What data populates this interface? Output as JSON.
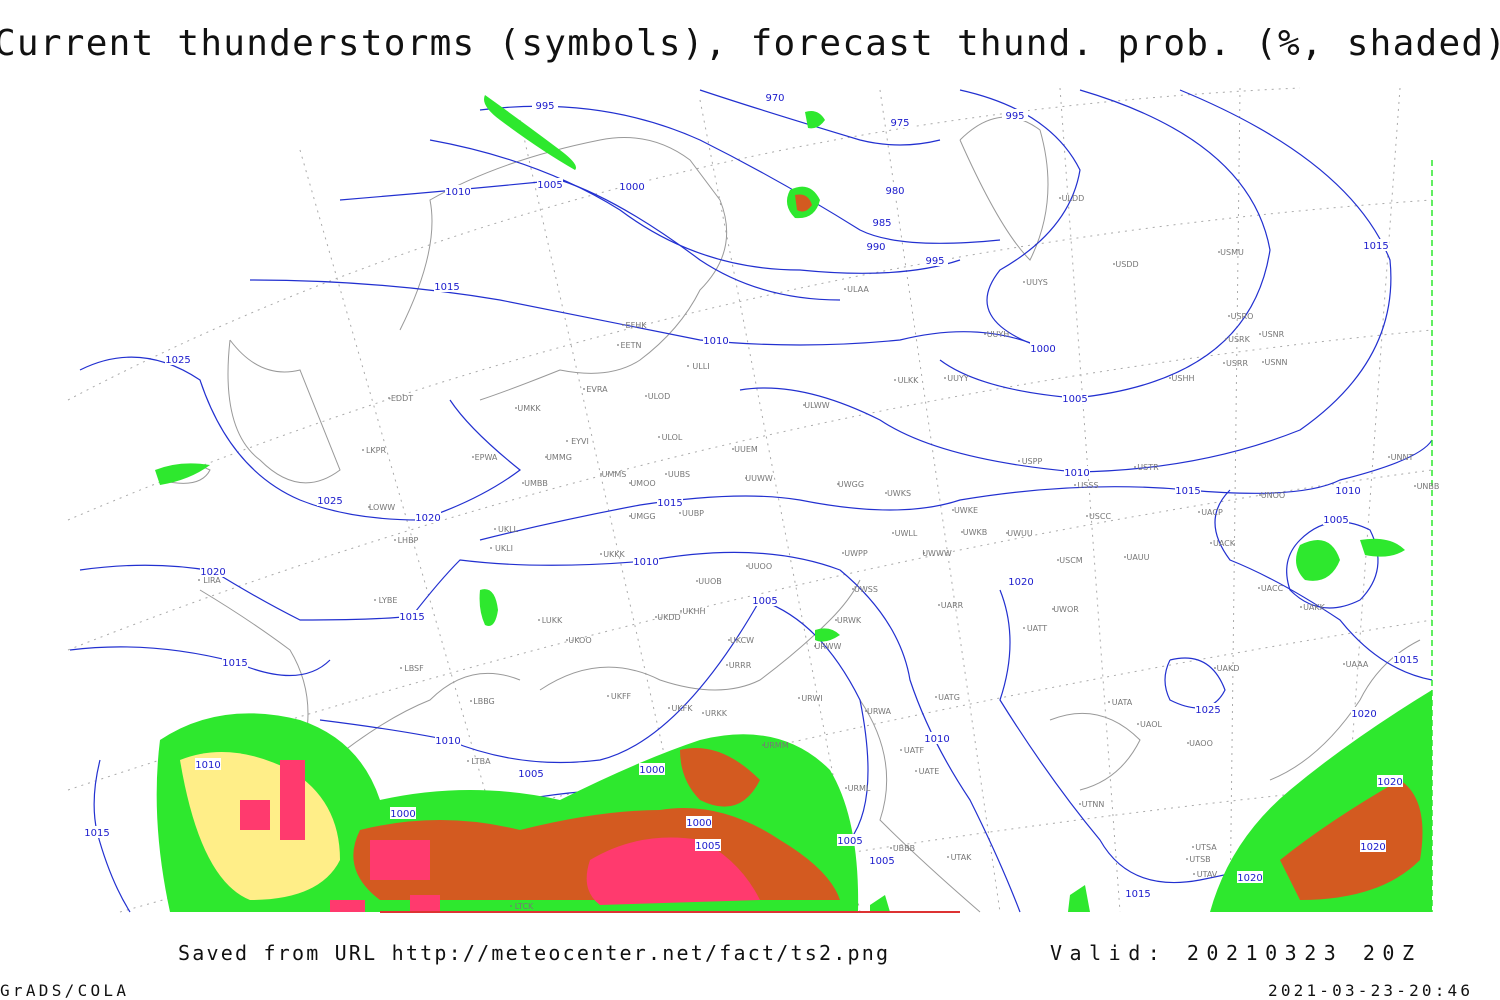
{
  "title": "Current thunderstorms (symbols), forecast thund. prob. (%, shaded)",
  "footer": {
    "saved": "Saved from URL http://meteocenter.net/fact/ts2.png",
    "valid": "Valid: 20210323 20Z",
    "software": "GrADS/COLA",
    "timestamp": "2021-03-23-20:46"
  },
  "isobar_labels": [
    995,
    970,
    975,
    995,
    1010,
    1005,
    1000,
    980,
    985,
    990,
    995,
    1015,
    1015,
    1025,
    1010,
    1000,
    1005,
    1025,
    1020,
    1015,
    1010,
    1015,
    1010,
    1005,
    1010,
    1020,
    1015,
    1005,
    1020,
    1015,
    1015,
    1025,
    1020,
    1010,
    1010,
    1010,
    1005,
    1000,
    1000,
    1000,
    1005,
    1005,
    1005,
    1020,
    1020,
    1020,
    1015,
    1015
  ],
  "stations": [
    "ULDD",
    "USDD",
    "USMU",
    "ULAA",
    "UUYS",
    "EFHK",
    "EETN",
    "UUYH",
    "USRO",
    "USRK",
    "USNR",
    "USRR",
    "USNN",
    "ULLI",
    "ULKK",
    "UUYY",
    "USHH",
    "EVRA",
    "ULOD",
    "EDDT",
    "UMKK",
    "ULWW",
    "EYVI",
    "ULOL",
    "LKPR",
    "UUEM",
    "EPWA",
    "UMMG",
    "USPP",
    "USTR",
    "UNNT",
    "UMMS",
    "UMOO",
    "UUBS",
    "UUWW",
    "UWGG",
    "UWKS",
    "UNBB",
    "USSS",
    "UMBB",
    "UNOO",
    "LOWW",
    "UWKE",
    "USCC",
    "UACP",
    "UMGG",
    "UUBP",
    "UKLL",
    "UWLL",
    "UWKB",
    "UWUU",
    "LHBP",
    "UKLI",
    "UACK",
    "UKKK",
    "UWPP",
    "UWWW",
    "USCM",
    "UAUU",
    "UUOO",
    "LIRA",
    "UUOB",
    "UACC",
    "UWSS",
    "LYBE",
    "UKHH",
    "UKDD",
    "UWOR",
    "UARR",
    "UAKK",
    "LUKK",
    "URWK",
    "UATT",
    "UKOO",
    "UKCW",
    "URWW",
    "LBSF",
    "URRR",
    "UAKD",
    "UAAA",
    "UKFF",
    "UATG",
    "URWI",
    "LBBG",
    "UKFK",
    "URKK",
    "URWA",
    "UATA",
    "UAOL",
    "UAOO",
    "URMM",
    "UATF",
    "UATE",
    "LTBA",
    "URML",
    "UTNN",
    "UBBB",
    "UTAK",
    "UTSA",
    "UTSB",
    "UTAV",
    "LTCK"
  ]
}
